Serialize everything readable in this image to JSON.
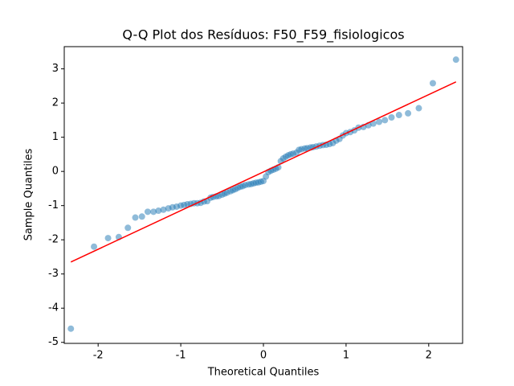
{
  "chart_data": {
    "type": "scatter",
    "title": "Q-Q Plot dos Resíduos: F50_F59_fisiologicos",
    "xlabel": "Theoretical Quantiles",
    "ylabel": "Sample Quantiles",
    "color": "#1f77b4",
    "opacity": 0.5,
    "x": [
      -2.33,
      -2.05,
      -1.88,
      -1.75,
      -1.64,
      -1.55,
      -1.47,
      -1.4,
      -1.33,
      -1.27,
      -1.21,
      -1.15,
      -1.1,
      -1.05,
      -1.0,
      -0.96,
      -0.92,
      -0.88,
      -0.84,
      -0.8,
      -0.76,
      -0.72,
      -0.68,
      -0.64,
      -0.61,
      -0.57,
      -0.54,
      -0.5,
      -0.47,
      -0.44,
      -0.4,
      -0.37,
      -0.34,
      -0.31,
      -0.28,
      -0.25,
      -0.22,
      -0.18,
      -0.15,
      -0.12,
      -0.09,
      -0.06,
      -0.03,
      0.0,
      0.03,
      0.06,
      0.09,
      0.12,
      0.15,
      0.18,
      0.21,
      0.24,
      0.27,
      0.3,
      0.33,
      0.36,
      0.4,
      0.43,
      0.46,
      0.5,
      0.53,
      0.57,
      0.6,
      0.64,
      0.68,
      0.72,
      0.76,
      0.8,
      0.84,
      0.88,
      0.92,
      0.96,
      1.0,
      1.05,
      1.1,
      1.15,
      1.21,
      1.27,
      1.33,
      1.4,
      1.47,
      1.55,
      1.64,
      1.75,
      1.88,
      2.05,
      2.33
    ],
    "y": [
      -4.6,
      -2.2,
      -1.95,
      -1.92,
      -1.65,
      -1.35,
      -1.32,
      -1.18,
      -1.18,
      -1.15,
      -1.12,
      -1.08,
      -1.05,
      -1.03,
      -1.0,
      -0.98,
      -0.96,
      -0.95,
      -0.93,
      -0.93,
      -0.92,
      -0.88,
      -0.87,
      -0.77,
      -0.75,
      -0.73,
      -0.72,
      -0.68,
      -0.65,
      -0.62,
      -0.58,
      -0.55,
      -0.52,
      -0.48,
      -0.45,
      -0.43,
      -0.4,
      -0.38,
      -0.37,
      -0.35,
      -0.33,
      -0.32,
      -0.3,
      -0.28,
      -0.15,
      -0.02,
      0.02,
      0.05,
      0.08,
      0.12,
      0.3,
      0.38,
      0.43,
      0.47,
      0.5,
      0.52,
      0.55,
      0.63,
      0.65,
      0.67,
      0.68,
      0.7,
      0.71,
      0.73,
      0.75,
      0.77,
      0.78,
      0.8,
      0.83,
      0.9,
      0.95,
      1.05,
      1.12,
      1.15,
      1.2,
      1.28,
      1.3,
      1.35,
      1.4,
      1.45,
      1.5,
      1.58,
      1.65,
      1.7,
      1.85,
      2.58,
      3.27
    ],
    "fit_line": {
      "x": [
        -2.33,
        2.33
      ],
      "y": [
        -2.65,
        2.62
      ],
      "color": "#ff0000"
    },
    "xlim": [
      -2.41,
      2.41
    ],
    "ylim": [
      -5.03,
      3.65
    ],
    "xticks": [
      -2,
      -1,
      0,
      1,
      2
    ],
    "yticks": [
      -5,
      -4,
      -3,
      -2,
      -1,
      0,
      1,
      2,
      3
    ]
  }
}
